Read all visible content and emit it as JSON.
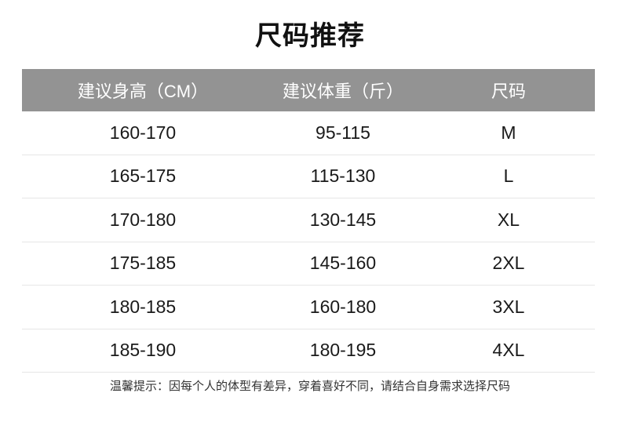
{
  "title": "尺码推荐",
  "table": {
    "headers": [
      "建议身高（CM）",
      "建议体重（斤）",
      "尺码"
    ],
    "rows": [
      [
        "160-170",
        "95-115",
        "M"
      ],
      [
        "165-175",
        "115-130",
        "L"
      ],
      [
        "170-180",
        "130-145",
        "XL"
      ],
      [
        "175-185",
        "145-160",
        "2XL"
      ],
      [
        "180-185",
        "160-180",
        "3XL"
      ],
      [
        "185-190",
        "180-195",
        "4XL"
      ]
    ]
  },
  "footer": "温馨提示：因每个人的体型有差异，穿着喜好不同，请结合自身需求选择尺码",
  "colors": {
    "header_bg": "#939393",
    "header_text": "#ffffff",
    "divider": "#e6e6e6"
  }
}
